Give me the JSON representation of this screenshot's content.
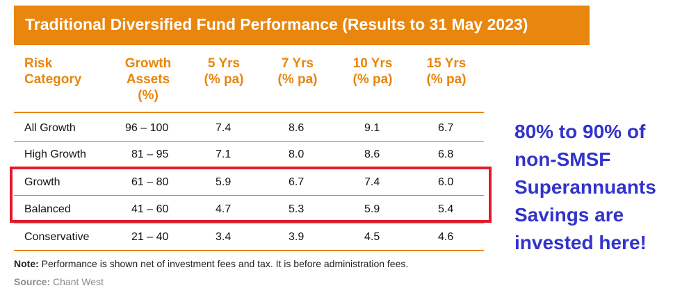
{
  "title": "Traditional Diversified Fund Performance (Results to 31 May 2023)",
  "headers": {
    "risk": [
      "Risk",
      "Category"
    ],
    "growth": [
      "Growth",
      "Assets",
      "(%)"
    ],
    "y5": [
      "5 Yrs",
      "(% pa)"
    ],
    "y7": [
      "7 Yrs",
      "(% pa)"
    ],
    "y10": [
      "10 Yrs",
      "(% pa)"
    ],
    "y15": [
      "15 Yrs",
      "(% pa)"
    ]
  },
  "rows": [
    {
      "category": "All Growth",
      "growth_assets": "96 – 100",
      "y5": "7.4",
      "y7": "8.6",
      "y10": "9.1",
      "y15": "6.7"
    },
    {
      "category": "High Growth",
      "growth_assets": "81 – 95",
      "y5": "7.1",
      "y7": "8.0",
      "y10": "8.6",
      "y15": "6.8"
    },
    {
      "category": "Growth",
      "growth_assets": "61 – 80",
      "y5": "5.9",
      "y7": "6.7",
      "y10": "7.4",
      "y15": "6.0"
    },
    {
      "category": "Balanced",
      "growth_assets": "41 – 60",
      "y5": "4.7",
      "y7": "5.3",
      "y10": "5.9",
      "y15": "5.4"
    },
    {
      "category": "Conservative",
      "growth_assets": "21 – 40",
      "y5": "3.4",
      "y7": "3.9",
      "y10": "4.5",
      "y15": "4.6"
    }
  ],
  "note": {
    "label": "Note:",
    "text": " Performance is shown net of investment fees and tax. It is before administration fees."
  },
  "source": {
    "label": "Source:",
    "text": " Chant West"
  },
  "callout": [
    "80% to 90% of",
    "non-SMSF",
    "Superannuants",
    "Savings are",
    "invested here!"
  ],
  "colors": {
    "accent": "#e8860e",
    "highlight_border": "#e3192a",
    "callout": "#3333cc"
  }
}
